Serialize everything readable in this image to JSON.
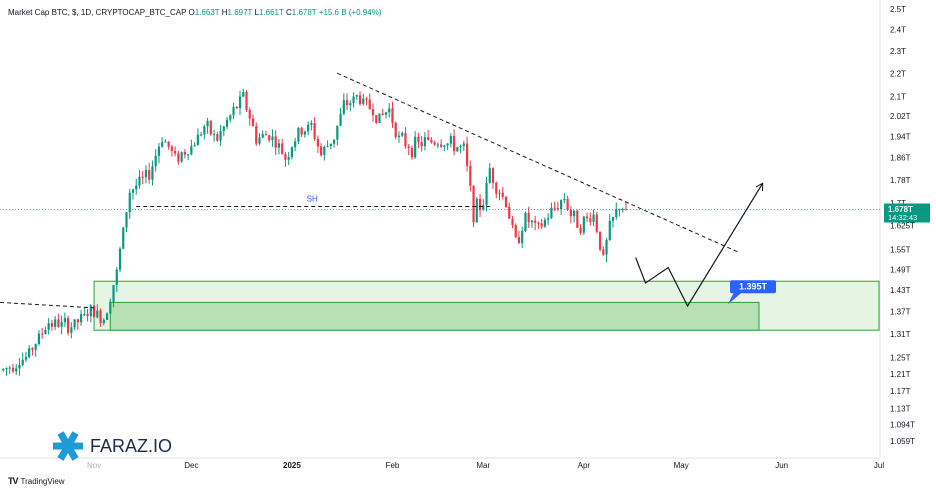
{
  "header": {
    "title": "Market Cap BTC, $, 1D, CRYPTOCAP_BTC_CAP",
    "open_label": "O",
    "open": "1.663T",
    "high_label": "H",
    "high": "1.697T",
    "low_label": "L",
    "low": "1.661T",
    "close_label": "C",
    "close": "1.678T",
    "change": "+15.6 B (+0.94%)"
  },
  "footer": {
    "brand": "TradingView",
    "brand_mark": "TV"
  },
  "watermark": {
    "text": "FARAZ.IO"
  },
  "colors": {
    "up": "#089981",
    "down": "#f23645",
    "zone_fill": "#b7e1b5",
    "zone_border": "#2e9e3a",
    "price_line": "#2962ff",
    "badge": "#2962ff"
  },
  "chart_data": {
    "type": "candlestick",
    "title": "Market Cap BTC, $, 1D, CRYPTOCAP_BTC_CAP",
    "y_scale": "log",
    "ylim": [
      1.04,
      2.55
    ],
    "y_ticks": [
      "2.5T",
      "2.4T",
      "2.3T",
      "2.2T",
      "2.1T",
      "2.02T",
      "1.94T",
      "1.86T",
      "1.78T",
      "1.7T",
      "1.625T",
      "1.55T",
      "1.49T",
      "1.43T",
      "1.37T",
      "1.31T",
      "1.25T",
      "1.21T",
      "1.17T",
      "1.13T",
      "1.094T",
      "1.059T"
    ],
    "y_tick_values": [
      2.5,
      2.4,
      2.3,
      2.2,
      2.1,
      2.02,
      1.94,
      1.86,
      1.78,
      1.7,
      1.625,
      1.55,
      1.49,
      1.43,
      1.37,
      1.31,
      1.25,
      1.21,
      1.17,
      1.13,
      1.094,
      1.059
    ],
    "x_ticks": [
      {
        "label": "Nov",
        "date": "2024-11-01",
        "faded": true
      },
      {
        "label": "Dec",
        "date": "2024-12-01"
      },
      {
        "label": "2025",
        "date": "2025-01-01",
        "bold": true
      },
      {
        "label": "Feb",
        "date": "2025-02-01"
      },
      {
        "label": "Mar",
        "date": "2025-03-01"
      },
      {
        "label": "Apr",
        "date": "2025-04-01"
      },
      {
        "label": "May",
        "date": "2025-05-01"
      },
      {
        "label": "Jun",
        "date": "2025-06-01"
      },
      {
        "label": "Jul",
        "date": "2025-07-01"
      }
    ],
    "xlim": [
      "2024-10-03",
      "2025-07-01"
    ],
    "anchors": [
      [
        "2024-10-04",
        1.22
      ],
      [
        "2024-10-11",
        1.25
      ],
      [
        "2024-10-18",
        1.34
      ],
      [
        "2024-10-25",
        1.33
      ],
      [
        "2024-10-31",
        1.37
      ],
      [
        "2024-11-04",
        1.35
      ],
      [
        "2024-11-08",
        1.48
      ],
      [
        "2024-11-12",
        1.74
      ],
      [
        "2024-11-15",
        1.77
      ],
      [
        "2024-11-18",
        1.8
      ],
      [
        "2024-11-22",
        1.94
      ],
      [
        "2024-11-26",
        1.86
      ],
      [
        "2024-12-01",
        1.9
      ],
      [
        "2024-12-05",
        1.98
      ],
      [
        "2024-12-09",
        1.93
      ],
      [
        "2024-12-13",
        2.02
      ],
      [
        "2024-12-17",
        2.1
      ],
      [
        "2024-12-21",
        1.93
      ],
      [
        "2024-12-25",
        1.95
      ],
      [
        "2024-12-30",
        1.86
      ],
      [
        "2025-01-03",
        1.95
      ],
      [
        "2025-01-07",
        1.98
      ],
      [
        "2025-01-10",
        1.87
      ],
      [
        "2025-01-14",
        1.94
      ],
      [
        "2025-01-17",
        2.06
      ],
      [
        "2025-01-21",
        2.1
      ],
      [
        "2025-01-24",
        2.07
      ],
      [
        "2025-01-28",
        2.01
      ],
      [
        "2025-01-31",
        2.05
      ],
      [
        "2025-02-03",
        1.93
      ],
      [
        "2025-02-07",
        1.9
      ],
      [
        "2025-02-11",
        1.92
      ],
      [
        "2025-02-15",
        1.92
      ],
      [
        "2025-02-19",
        1.91
      ],
      [
        "2025-02-23",
        1.89
      ],
      [
        "2025-02-26",
        1.67
      ],
      [
        "2025-03-01",
        1.7
      ],
      [
        "2025-03-03",
        1.82
      ],
      [
        "2025-03-05",
        1.76
      ],
      [
        "2025-03-08",
        1.7
      ],
      [
        "2025-03-11",
        1.57
      ],
      [
        "2025-03-14",
        1.65
      ],
      [
        "2025-03-18",
        1.61
      ],
      [
        "2025-03-22",
        1.67
      ],
      [
        "2025-03-26",
        1.72
      ],
      [
        "2025-03-28",
        1.66
      ],
      [
        "2025-03-31",
        1.63
      ],
      [
        "2025-04-04",
        1.66
      ],
      [
        "2025-04-07",
        1.52
      ],
      [
        "2025-04-09",
        1.62
      ],
      [
        "2025-04-12",
        1.69
      ],
      [
        "2025-04-14",
        1.678
      ]
    ],
    "demand_zone": {
      "top": 1.455,
      "bottom": 1.32,
      "from": "2024-11-01",
      "to": "2025-07-01"
    },
    "inner_zone": {
      "top": 1.395,
      "bottom": 1.32,
      "from": "2024-11-06",
      "to": "2025-05-25"
    },
    "zone_label": "1.395T",
    "swing_high": {
      "label": "SH",
      "value": 1.688,
      "from": "2024-11-14",
      "to": "2025-03-04"
    },
    "trendline": [
      [
        "2025-01-15",
        2.2
      ],
      [
        "2025-05-19",
        1.54
      ]
    ],
    "left_dashed": [
      [
        "2024-10-03",
        1.395
      ],
      [
        "2024-11-01",
        1.38
      ]
    ],
    "projection": [
      [
        "2025-04-17",
        1.525
      ],
      [
        "2025-04-20",
        1.45
      ],
      [
        "2025-04-27",
        1.495
      ],
      [
        "2025-05-03",
        1.385
      ],
      [
        "2025-05-26",
        1.765
      ]
    ],
    "last_price": {
      "value": 1.678,
      "label": "1.678T",
      "countdown": "14:32:43"
    }
  }
}
